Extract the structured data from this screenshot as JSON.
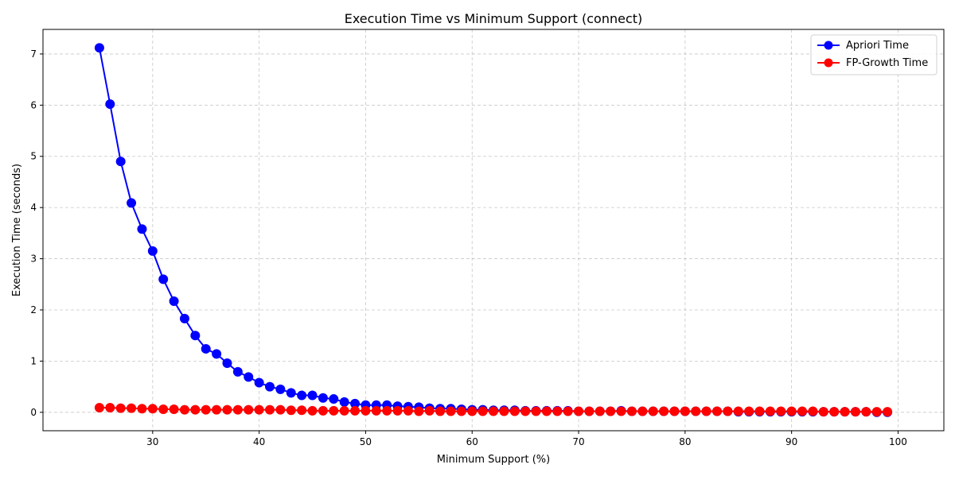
{
  "chart_data": {
    "type": "line",
    "title": "Execution Time vs Minimum Support (connect)",
    "xlabel": "Minimum Support (%)",
    "ylabel": "Execution Time (seconds)",
    "xlim": [
      19.7,
      104.3
    ],
    "ylim": [
      -0.36,
      7.48
    ],
    "xticks": [
      30,
      40,
      50,
      60,
      70,
      80,
      90,
      100
    ],
    "yticks": [
      0,
      1,
      2,
      3,
      4,
      5,
      6,
      7
    ],
    "grid": true,
    "legend_position": "top-right",
    "x": [
      25,
      26,
      27,
      28,
      29,
      30,
      31,
      32,
      33,
      34,
      35,
      36,
      37,
      38,
      39,
      40,
      41,
      42,
      43,
      44,
      45,
      46,
      47,
      48,
      49,
      50,
      51,
      52,
      53,
      54,
      55,
      56,
      57,
      58,
      59,
      60,
      61,
      62,
      63,
      64,
      65,
      66,
      67,
      68,
      69,
      70,
      71,
      72,
      73,
      74,
      75,
      76,
      77,
      78,
      79,
      80,
      81,
      82,
      83,
      84,
      85,
      86,
      87,
      88,
      89,
      90,
      91,
      92,
      93,
      94,
      95,
      96,
      97,
      98,
      99
    ],
    "series": [
      {
        "name": "Apriori Time",
        "color": "#0000ff",
        "values": [
          7.12,
          6.02,
          4.9,
          4.09,
          3.58,
          3.15,
          2.6,
          2.17,
          1.83,
          1.5,
          1.24,
          1.14,
          0.96,
          0.79,
          0.69,
          0.58,
          0.5,
          0.45,
          0.38,
          0.33,
          0.33,
          0.28,
          0.26,
          0.2,
          0.17,
          0.14,
          0.14,
          0.14,
          0.12,
          0.11,
          0.1,
          0.08,
          0.07,
          0.07,
          0.06,
          0.05,
          0.05,
          0.04,
          0.04,
          0.04,
          0.03,
          0.03,
          0.03,
          0.03,
          0.03,
          0.02,
          0.02,
          0.02,
          0.02,
          0.03,
          0.02,
          0.02,
          0.02,
          0.02,
          0.02,
          0.02,
          0.02,
          0.02,
          0.02,
          0.02,
          0.01,
          0.01,
          0.01,
          0.01,
          0.01,
          0.01,
          0.01,
          0.01,
          0.01,
          0.01,
          0.01,
          0.01,
          0.01,
          0.0,
          0.0
        ]
      },
      {
        "name": "FP-Growth Time",
        "color": "#ff0000",
        "values": [
          0.09,
          0.09,
          0.08,
          0.08,
          0.07,
          0.07,
          0.06,
          0.06,
          0.05,
          0.05,
          0.05,
          0.05,
          0.05,
          0.05,
          0.05,
          0.05,
          0.05,
          0.05,
          0.04,
          0.04,
          0.03,
          0.03,
          0.03,
          0.03,
          0.03,
          0.03,
          0.03,
          0.03,
          0.03,
          0.03,
          0.02,
          0.03,
          0.02,
          0.02,
          0.02,
          0.02,
          0.02,
          0.02,
          0.02,
          0.02,
          0.02,
          0.02,
          0.02,
          0.02,
          0.02,
          0.02,
          0.02,
          0.02,
          0.02,
          0.02,
          0.02,
          0.02,
          0.02,
          0.02,
          0.02,
          0.02,
          0.02,
          0.02,
          0.02,
          0.02,
          0.02,
          0.02,
          0.02,
          0.02,
          0.02,
          0.02,
          0.02,
          0.02,
          0.01,
          0.01,
          0.01,
          0.01,
          0.01,
          0.01,
          0.01
        ]
      }
    ]
  }
}
